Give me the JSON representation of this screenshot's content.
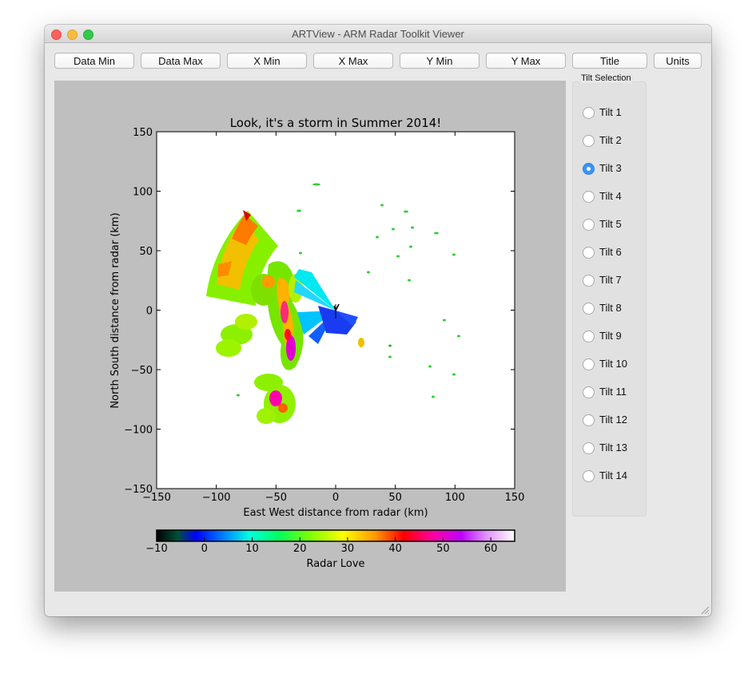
{
  "window": {
    "title": "ARTView - ARM Radar Toolkit Viewer"
  },
  "toolbar": {
    "buttons": [
      "Data Min",
      "Data Max",
      "X Min",
      "X Max",
      "Y Min",
      "Y Max",
      "Title",
      "Units"
    ]
  },
  "tilt_panel": {
    "label": "Tilt Selection",
    "selected": "Tilt 3",
    "items": [
      "Tilt 1",
      "Tilt 2",
      "Tilt 3",
      "Tilt 4",
      "Tilt 5",
      "Tilt 6",
      "Tilt 7",
      "Tilt 8",
      "Tilt 9",
      "Tilt 10",
      "Tilt 11",
      "Tilt 12",
      "Tilt 13",
      "Tilt 14"
    ]
  },
  "plot": {
    "title": "Look, it's a storm in Summer 2014!",
    "xlabel": "East West distance from radar (km)",
    "ylabel": "North South distance from radar (km)",
    "x_ticks": [
      "−150",
      "−100",
      "−50",
      "0",
      "50",
      "100",
      "150"
    ],
    "y_ticks": [
      "150",
      "100",
      "50",
      "0",
      "−50",
      "−100",
      "−150"
    ],
    "xlim": [
      -150,
      150
    ],
    "ylim": [
      -150,
      150
    ],
    "colorbar": {
      "label": "Radar Love",
      "ticks": [
        "−10",
        "0",
        "10",
        "20",
        "30",
        "40",
        "50",
        "60"
      ],
      "range": [
        -10,
        65
      ]
    }
  },
  "colors": {
    "plot_background": "#bfbfbf",
    "accent": "#3a94f5"
  }
}
